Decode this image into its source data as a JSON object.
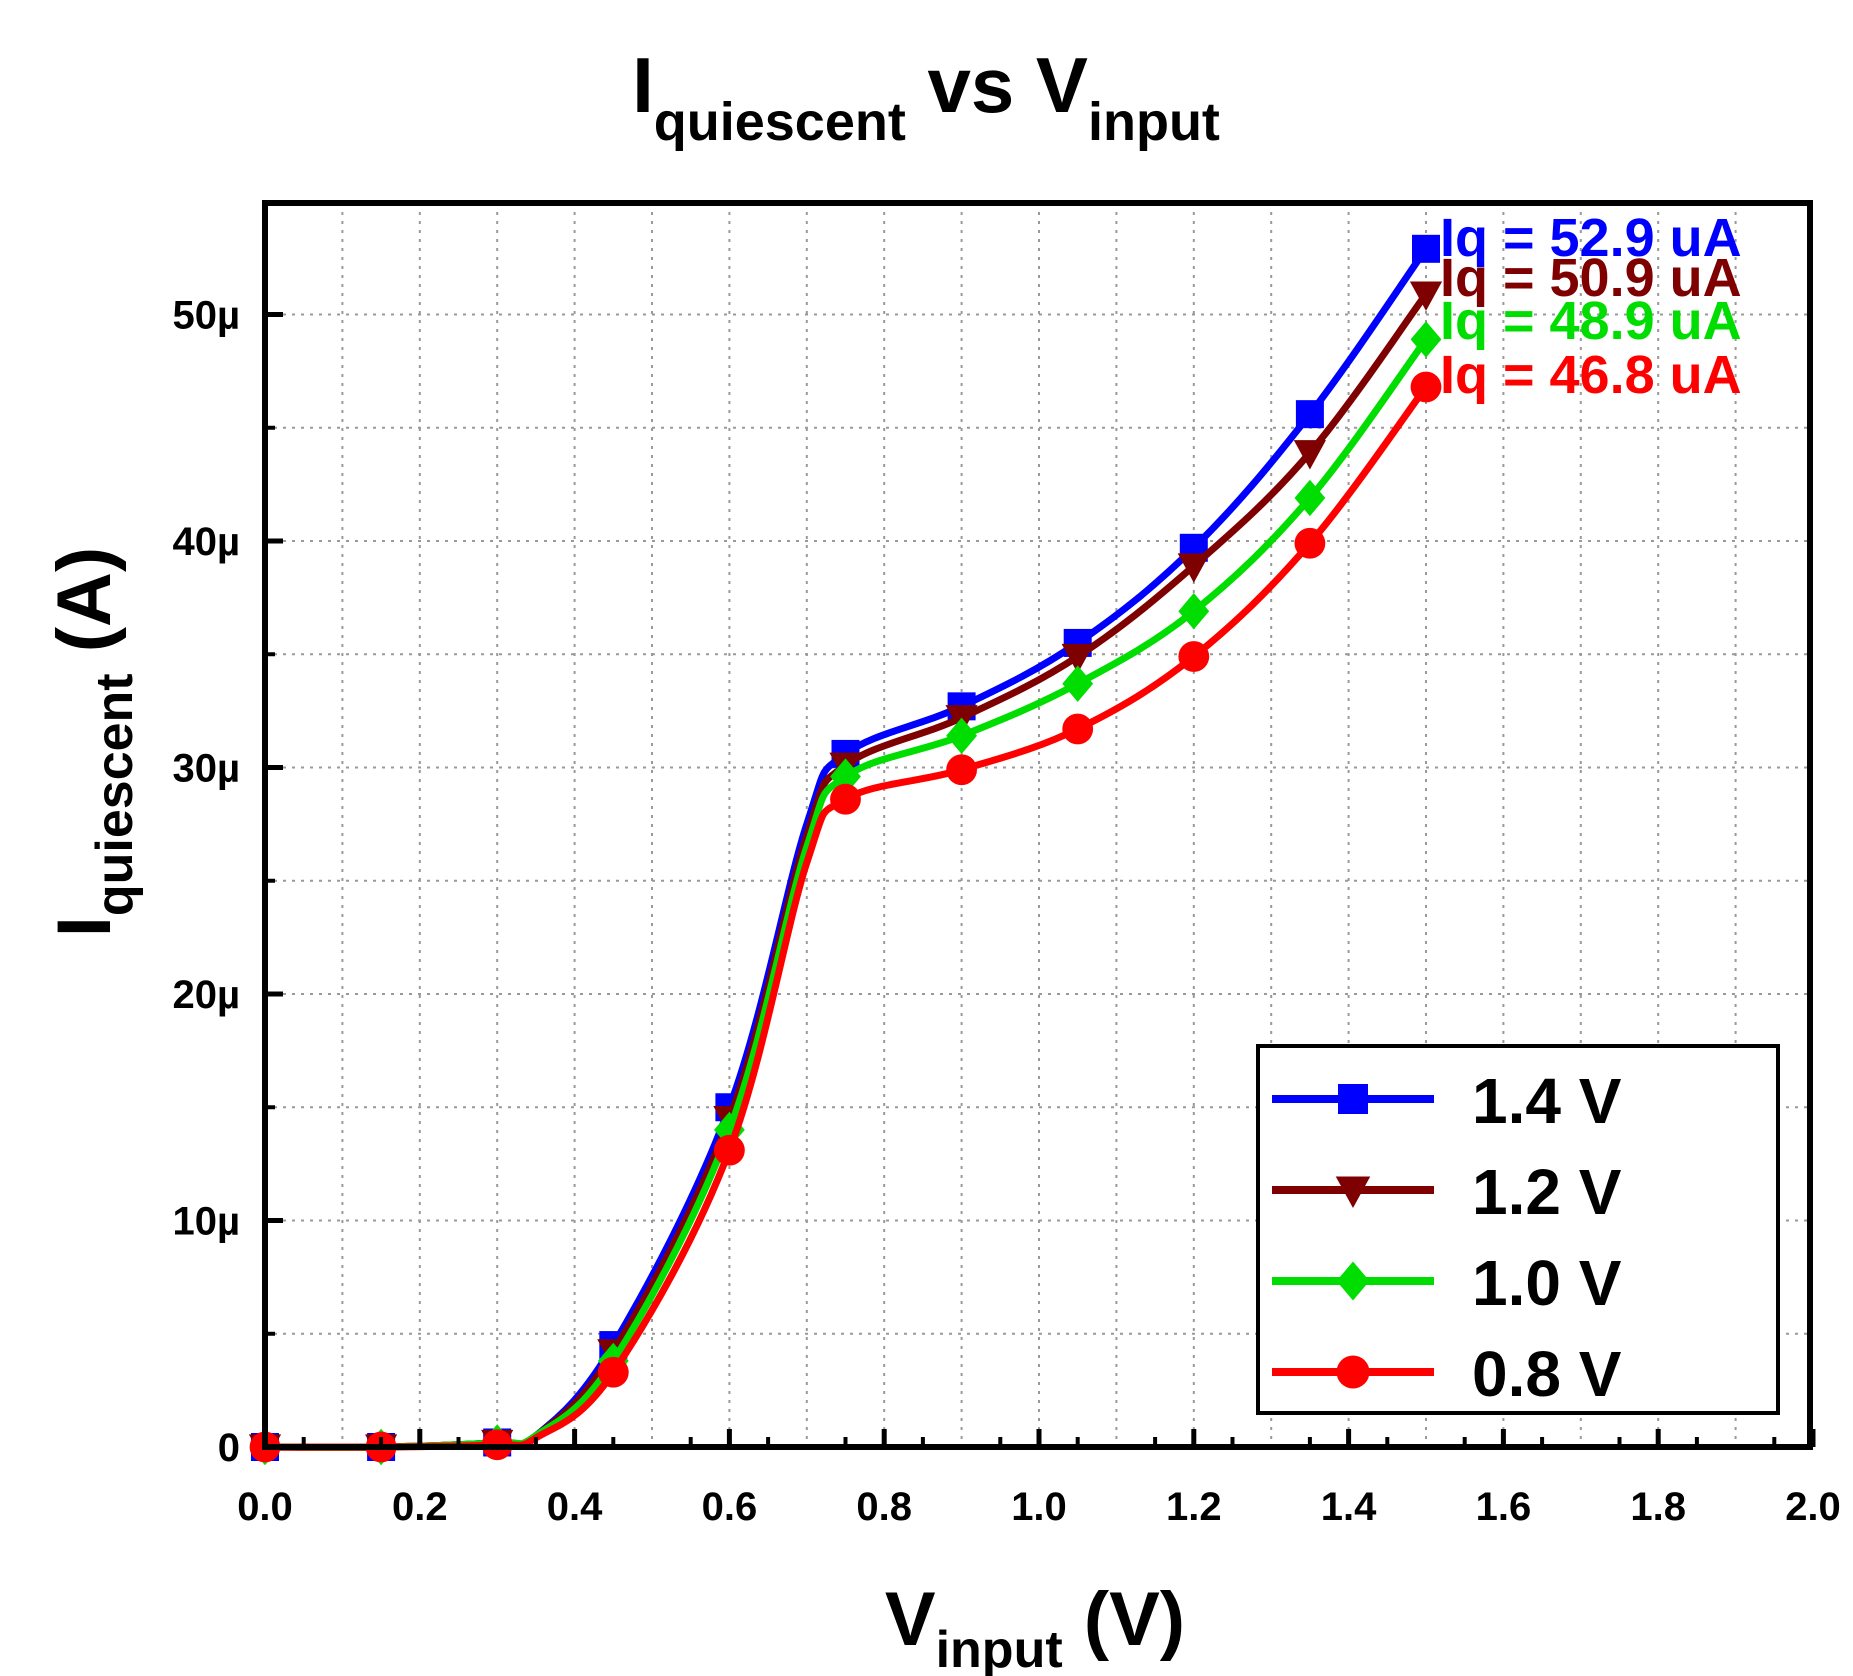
{
  "chart_data": {
    "type": "line",
    "title": {
      "main": "I",
      "sub": "quiescent",
      "mid": " vs V",
      "sub2": "input"
    },
    "xlabel": {
      "main": "V",
      "sub": "input",
      "tail": " (V)"
    },
    "ylabel": {
      "main": "I",
      "sub": "quiescent",
      "tail": " (A)"
    },
    "xlim": [
      0.0,
      2.0
    ],
    "ylim": [
      0,
      55
    ],
    "xticks": [
      0.0,
      0.2,
      0.4,
      0.6,
      0.8,
      1.0,
      1.2,
      1.4,
      1.6,
      1.8,
      2.0
    ],
    "xtick_labels": [
      "0.0",
      "0.2",
      "0.4",
      "0.6",
      "0.8",
      "1.0",
      "1.2",
      "1.4",
      "1.6",
      "1.8",
      "2.0"
    ],
    "yticks": [
      0,
      10,
      20,
      30,
      40,
      50
    ],
    "ytick_labels": [
      "0",
      "10µ",
      "20µ",
      "30µ",
      "40µ",
      "50µ"
    ],
    "y_unit_note": "values in µA",
    "grid": true,
    "legend_position": "bottom-right",
    "series": [
      {
        "name": "1.4 V",
        "color": "#0000ff",
        "marker": "square",
        "x": [
          0.0,
          0.15,
          0.3,
          0.35,
          0.45,
          0.6,
          0.7,
          0.75,
          0.9,
          1.05,
          1.2,
          1.35,
          1.5
        ],
        "y": [
          0.0,
          0.0,
          0.2,
          0.5,
          4.5,
          15.0,
          27.5,
          30.6,
          32.7,
          35.5,
          39.7,
          45.6,
          52.9
        ],
        "marker_indices": [
          0,
          1,
          2,
          4,
          5,
          7,
          8,
          9,
          10,
          11,
          12
        ]
      },
      {
        "name": "1.2 V",
        "color": "#7f0000",
        "marker": "triangle-down",
        "x": [
          0.0,
          0.15,
          0.3,
          0.35,
          0.45,
          0.6,
          0.7,
          0.75,
          0.9,
          1.05,
          1.2,
          1.35,
          1.5
        ],
        "y": [
          0.0,
          0.0,
          0.2,
          0.5,
          4.2,
          14.5,
          27.0,
          30.1,
          32.2,
          34.9,
          38.9,
          43.9,
          50.9
        ],
        "marker_indices": [
          0,
          1,
          2,
          4,
          5,
          7,
          8,
          9,
          10,
          11,
          12
        ]
      },
      {
        "name": "1.0 V",
        "color": "#00dd00",
        "marker": "diamond",
        "x": [
          0.0,
          0.15,
          0.3,
          0.35,
          0.45,
          0.6,
          0.7,
          0.75,
          0.9,
          1.05,
          1.2,
          1.35,
          1.5
        ],
        "y": [
          0.0,
          0.0,
          0.2,
          0.5,
          3.8,
          14.0,
          26.5,
          29.6,
          31.4,
          33.7,
          36.9,
          41.9,
          48.9
        ],
        "marker_indices": [
          0,
          1,
          2,
          4,
          5,
          7,
          8,
          9,
          10,
          11,
          12
        ]
      },
      {
        "name": "0.8 V",
        "color": "#ff0000",
        "marker": "circle",
        "x": [
          0.0,
          0.15,
          0.3,
          0.35,
          0.45,
          0.6,
          0.7,
          0.75,
          0.9,
          1.05,
          1.2,
          1.35,
          1.5
        ],
        "y": [
          0.0,
          0.0,
          0.1,
          0.4,
          3.3,
          13.1,
          25.8,
          28.6,
          29.9,
          31.7,
          34.9,
          39.9,
          46.8
        ],
        "marker_indices": [
          0,
          1,
          2,
          4,
          5,
          7,
          8,
          9,
          10,
          11,
          12
        ]
      }
    ],
    "annotations": [
      {
        "text": "Iq = 52.9 uA",
        "color": "#0000ff"
      },
      {
        "text": "Iq = 50.9 uA",
        "color": "#7f0000"
      },
      {
        "text": "Iq = 48.9 uA",
        "color": "#00dd00"
      },
      {
        "text": "Iq = 46.8 uA",
        "color": "#ff0000"
      }
    ]
  }
}
